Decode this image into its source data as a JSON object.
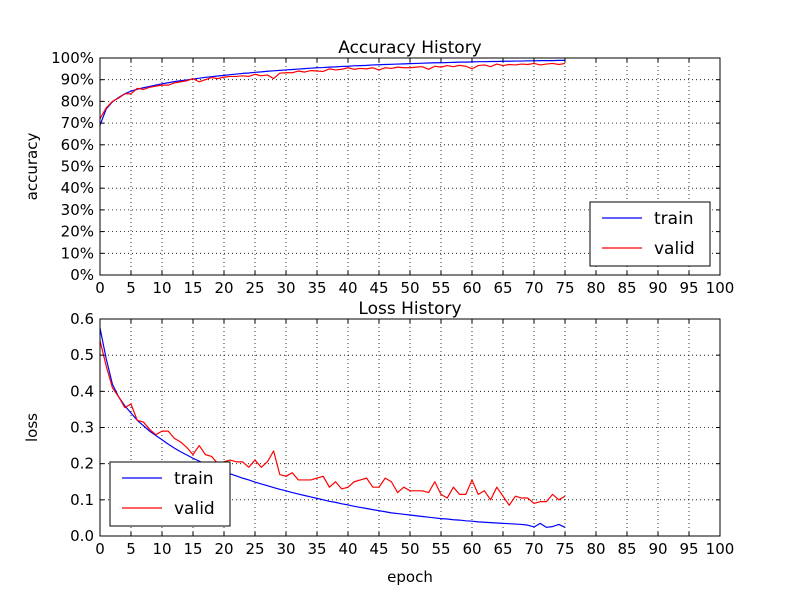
{
  "chart_data": [
    {
      "type": "line",
      "title": "Accuracy History",
      "xlabel": "",
      "ylabel": "accuracy",
      "xlim": [
        0,
        100
      ],
      "ylim": [
        0,
        1
      ],
      "xticks": [
        0,
        5,
        10,
        15,
        20,
        25,
        30,
        35,
        40,
        45,
        50,
        55,
        60,
        65,
        70,
        75,
        80,
        85,
        90,
        95,
        100
      ],
      "xtick_labels": [
        "0",
        "5",
        "10",
        "15",
        "20",
        "25",
        "30",
        "35",
        "40",
        "45",
        "50",
        "55",
        "60",
        "65",
        "70",
        "75",
        "80",
        "85",
        "90",
        "95",
        "100"
      ],
      "yticks": [
        0,
        0.1,
        0.2,
        0.3,
        0.4,
        0.5,
        0.6,
        0.7,
        0.8,
        0.9,
        1.0
      ],
      "ytick_labels": [
        "0%",
        "10%",
        "20%",
        "30%",
        "40%",
        "50%",
        "60%",
        "70%",
        "80%",
        "90%",
        "100%"
      ],
      "grid": true,
      "legend": "lower-right",
      "series": [
        {
          "name": "train",
          "color": "#0000ff",
          "x": [
            0,
            1,
            2,
            3,
            4,
            5,
            6,
            7,
            8,
            9,
            10,
            11,
            12,
            13,
            14,
            15,
            16,
            17,
            18,
            19,
            20,
            21,
            22,
            23,
            24,
            25,
            26,
            27,
            28,
            29,
            30,
            31,
            32,
            33,
            34,
            35,
            36,
            37,
            38,
            39,
            40,
            41,
            42,
            43,
            44,
            45,
            46,
            47,
            48,
            49,
            50,
            51,
            52,
            53,
            54,
            55,
            56,
            57,
            58,
            59,
            60,
            61,
            62,
            63,
            64,
            65,
            66,
            67,
            68,
            69,
            70,
            71,
            72,
            73,
            74,
            75
          ],
          "y": [
            0.69,
            0.765,
            0.798,
            0.818,
            0.835,
            0.847,
            0.856,
            0.863,
            0.869,
            0.875,
            0.881,
            0.886,
            0.891,
            0.895,
            0.899,
            0.903,
            0.907,
            0.911,
            0.914,
            0.917,
            0.92,
            0.923,
            0.926,
            0.929,
            0.931,
            0.934,
            0.936,
            0.939,
            0.941,
            0.943,
            0.945,
            0.947,
            0.949,
            0.951,
            0.953,
            0.955,
            0.956,
            0.958,
            0.959,
            0.961,
            0.962,
            0.964,
            0.965,
            0.966,
            0.968,
            0.969,
            0.97,
            0.971,
            0.972,
            0.973,
            0.974,
            0.975,
            0.976,
            0.977,
            0.978,
            0.978,
            0.979,
            0.98,
            0.981,
            0.981,
            0.982,
            0.983,
            0.983,
            0.984,
            0.984,
            0.985,
            0.985,
            0.986,
            0.986,
            0.987,
            0.987,
            0.988,
            0.988,
            0.988,
            0.989,
            0.989
          ]
        },
        {
          "name": "valid",
          "color": "#ff0000",
          "x": [
            0,
            1,
            2,
            3,
            4,
            5,
            6,
            7,
            8,
            9,
            10,
            11,
            12,
            13,
            14,
            15,
            16,
            17,
            18,
            19,
            20,
            21,
            22,
            23,
            24,
            25,
            26,
            27,
            28,
            29,
            30,
            31,
            32,
            33,
            34,
            35,
            36,
            37,
            38,
            39,
            40,
            41,
            42,
            43,
            44,
            45,
            46,
            47,
            48,
            49,
            50,
            51,
            52,
            53,
            54,
            55,
            56,
            57,
            58,
            59,
            60,
            61,
            62,
            63,
            64,
            65,
            66,
            67,
            68,
            69,
            70,
            71,
            72,
            73,
            74,
            75
          ],
          "y": [
            0.72,
            0.77,
            0.8,
            0.815,
            0.835,
            0.835,
            0.86,
            0.855,
            0.865,
            0.87,
            0.875,
            0.875,
            0.885,
            0.89,
            0.895,
            0.905,
            0.89,
            0.9,
            0.91,
            0.905,
            0.912,
            0.915,
            0.915,
            0.918,
            0.915,
            0.925,
            0.918,
            0.922,
            0.905,
            0.93,
            0.932,
            0.932,
            0.94,
            0.935,
            0.942,
            0.94,
            0.938,
            0.95,
            0.945,
            0.948,
            0.955,
            0.948,
            0.952,
            0.95,
            0.955,
            0.945,
            0.955,
            0.952,
            0.958,
            0.955,
            0.955,
            0.958,
            0.96,
            0.948,
            0.962,
            0.958,
            0.965,
            0.96,
            0.966,
            0.962,
            0.95,
            0.965,
            0.968,
            0.96,
            0.972,
            0.965,
            0.97,
            0.968,
            0.972,
            0.97,
            0.975,
            0.968,
            0.972,
            0.975,
            0.97,
            0.975
          ]
        }
      ]
    },
    {
      "type": "line",
      "title": "Loss History",
      "xlabel": "epoch",
      "ylabel": "loss",
      "xlim": [
        0,
        100
      ],
      "ylim": [
        0,
        0.6
      ],
      "xticks": [
        0,
        5,
        10,
        15,
        20,
        25,
        30,
        35,
        40,
        45,
        50,
        55,
        60,
        65,
        70,
        75,
        80,
        85,
        90,
        95,
        100
      ],
      "xtick_labels": [
        "0",
        "5",
        "10",
        "15",
        "20",
        "25",
        "30",
        "35",
        "40",
        "45",
        "50",
        "55",
        "60",
        "65",
        "70",
        "75",
        "80",
        "85",
        "90",
        "95",
        "100"
      ],
      "yticks": [
        0,
        0.1,
        0.2,
        0.3,
        0.4,
        0.5,
        0.6
      ],
      "ytick_labels": [
        "0.0",
        "0.1",
        "0.2",
        "0.3",
        "0.4",
        "0.5",
        "0.6"
      ],
      "grid": true,
      "legend": "lower-left",
      "series": [
        {
          "name": "train",
          "color": "#0000ff",
          "x": [
            0,
            1,
            2,
            3,
            4,
            5,
            6,
            7,
            8,
            9,
            10,
            11,
            12,
            13,
            14,
            15,
            16,
            17,
            18,
            19,
            20,
            21,
            22,
            23,
            24,
            25,
            26,
            27,
            28,
            29,
            30,
            31,
            32,
            33,
            34,
            35,
            36,
            37,
            38,
            39,
            40,
            41,
            42,
            43,
            44,
            45,
            46,
            47,
            48,
            49,
            50,
            51,
            52,
            53,
            54,
            55,
            56,
            57,
            58,
            59,
            60,
            61,
            62,
            63,
            64,
            65,
            66,
            67,
            68,
            69,
            70,
            71,
            72,
            73,
            74,
            75
          ],
          "y": [
            0.575,
            0.49,
            0.42,
            0.385,
            0.36,
            0.34,
            0.32,
            0.305,
            0.29,
            0.278,
            0.266,
            0.254,
            0.243,
            0.233,
            0.224,
            0.215,
            0.207,
            0.199,
            0.192,
            0.185,
            0.178,
            0.172,
            0.166,
            0.16,
            0.155,
            0.149,
            0.144,
            0.139,
            0.134,
            0.129,
            0.125,
            0.12,
            0.116,
            0.112,
            0.108,
            0.104,
            0.1,
            0.096,
            0.093,
            0.089,
            0.086,
            0.082,
            0.079,
            0.076,
            0.073,
            0.07,
            0.067,
            0.064,
            0.062,
            0.06,
            0.058,
            0.056,
            0.054,
            0.052,
            0.05,
            0.048,
            0.047,
            0.045,
            0.044,
            0.042,
            0.041,
            0.039,
            0.038,
            0.037,
            0.036,
            0.035,
            0.034,
            0.033,
            0.032,
            0.03,
            0.025,
            0.035,
            0.024,
            0.026,
            0.032,
            0.024
          ]
        },
        {
          "name": "valid",
          "color": "#ff0000",
          "x": [
            0,
            1,
            2,
            3,
            4,
            5,
            6,
            7,
            8,
            9,
            10,
            11,
            12,
            13,
            14,
            15,
            16,
            17,
            18,
            19,
            20,
            21,
            22,
            23,
            24,
            25,
            26,
            27,
            28,
            29,
            30,
            31,
            32,
            33,
            34,
            35,
            36,
            37,
            38,
            39,
            40,
            41,
            42,
            43,
            44,
            45,
            46,
            47,
            48,
            49,
            50,
            51,
            52,
            53,
            54,
            55,
            56,
            57,
            58,
            59,
            60,
            61,
            62,
            63,
            64,
            65,
            66,
            67,
            68,
            69,
            70,
            71,
            72,
            73,
            74,
            75
          ],
          "y": [
            0.54,
            0.47,
            0.41,
            0.385,
            0.355,
            0.365,
            0.32,
            0.315,
            0.295,
            0.28,
            0.29,
            0.29,
            0.27,
            0.26,
            0.245,
            0.225,
            0.25,
            0.225,
            0.22,
            0.2,
            0.205,
            0.21,
            0.205,
            0.205,
            0.19,
            0.21,
            0.19,
            0.205,
            0.235,
            0.17,
            0.165,
            0.175,
            0.155,
            0.155,
            0.155,
            0.16,
            0.165,
            0.135,
            0.15,
            0.13,
            0.135,
            0.15,
            0.155,
            0.16,
            0.135,
            0.135,
            0.16,
            0.15,
            0.12,
            0.135,
            0.125,
            0.125,
            0.125,
            0.12,
            0.15,
            0.115,
            0.105,
            0.135,
            0.115,
            0.115,
            0.155,
            0.115,
            0.125,
            0.1,
            0.135,
            0.11,
            0.085,
            0.11,
            0.105,
            0.105,
            0.09,
            0.095,
            0.095,
            0.115,
            0.1,
            0.11
          ]
        }
      ]
    }
  ]
}
